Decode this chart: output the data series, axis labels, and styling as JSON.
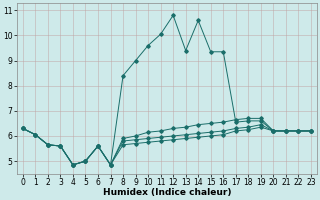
{
  "xlabel": "Humidex (Indice chaleur)",
  "bg_color": "#ceeaea",
  "grid_color": "#c0a0a0",
  "line_color": "#1a6e6a",
  "x_values": [
    0,
    1,
    2,
    3,
    4,
    5,
    6,
    7,
    8,
    9,
    10,
    11,
    12,
    13,
    14,
    15,
    16,
    17,
    18,
    19,
    20,
    21,
    22,
    23
  ],
  "series": [
    [
      6.3,
      6.05,
      5.65,
      5.6,
      4.85,
      5.0,
      5.6,
      4.85,
      8.4,
      9.0,
      9.6,
      10.05,
      10.8,
      9.4,
      10.6,
      9.35,
      9.35,
      6.55,
      6.6,
      6.6,
      6.2,
      6.2,
      6.2,
      6.2
    ],
    [
      6.3,
      6.05,
      5.65,
      5.6,
      4.85,
      5.0,
      5.6,
      4.85,
      5.9,
      6.0,
      6.15,
      6.2,
      6.3,
      6.35,
      6.45,
      6.5,
      6.55,
      6.65,
      6.7,
      6.7,
      6.2,
      6.2,
      6.2,
      6.2
    ],
    [
      6.3,
      6.05,
      5.65,
      5.6,
      4.85,
      5.0,
      5.6,
      4.85,
      5.8,
      5.85,
      5.9,
      5.95,
      6.0,
      6.05,
      6.1,
      6.15,
      6.2,
      6.3,
      6.35,
      6.45,
      6.2,
      6.2,
      6.2,
      6.2
    ],
    [
      6.3,
      6.05,
      5.65,
      5.6,
      4.85,
      5.0,
      5.6,
      4.85,
      5.65,
      5.7,
      5.75,
      5.8,
      5.85,
      5.9,
      5.95,
      6.0,
      6.05,
      6.2,
      6.25,
      6.35,
      6.2,
      6.2,
      6.2,
      6.2
    ]
  ],
  "ylim": [
    4.5,
    11.3
  ],
  "xlim": [
    -0.5,
    23.5
  ],
  "yticks": [
    5,
    6,
    7,
    8,
    9,
    10,
    11
  ],
  "xticks": [
    0,
    1,
    2,
    3,
    4,
    5,
    6,
    7,
    8,
    9,
    10,
    11,
    12,
    13,
    14,
    15,
    16,
    17,
    18,
    19,
    20,
    21,
    22,
    23
  ],
  "tick_fontsize": 5.5,
  "label_fontsize": 6.5
}
